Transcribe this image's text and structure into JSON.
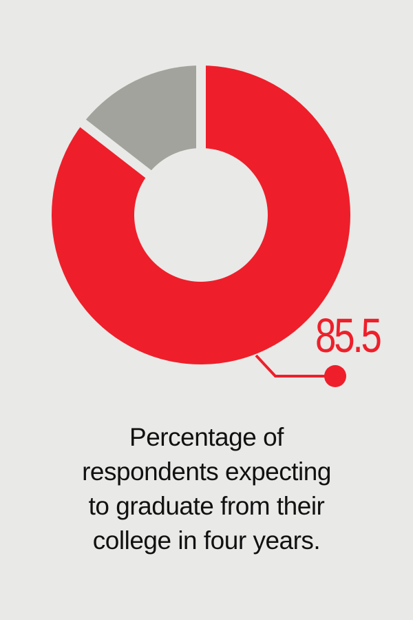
{
  "chart_data": {
    "type": "pie",
    "variant": "donut",
    "slices": [
      {
        "value": 85.5,
        "color": "#ee1f2a"
      },
      {
        "value": 14.5,
        "color": "#a3a39d"
      }
    ],
    "value_label": "85.5",
    "title_lines": [
      "Percentage of",
      "respondents expecting",
      "to graduate from their",
      "college in four years."
    ]
  },
  "colors": {
    "background": "#e9e9e7",
    "accent": "#ee1f2a",
    "remainder": "#a3a39d",
    "text": "#111111"
  }
}
